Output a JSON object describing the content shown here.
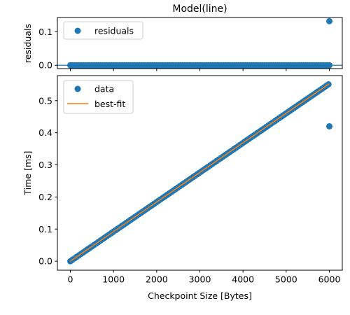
{
  "colors": {
    "points": "#1f77b4",
    "fit_line": "#ff7f0e",
    "zero_line": "#1f77b4",
    "axes": "#000000",
    "background": "#ffffff"
  },
  "chart_data": [
    {
      "type": "scatter",
      "panel": "residuals",
      "title": "Model(line)",
      "xlabel": "",
      "ylabel": "residuals",
      "xlim": [
        -300,
        6300
      ],
      "ylim": [
        -0.01,
        0.143
      ],
      "x_ticks": [
        0,
        1000,
        2000,
        3000,
        4000,
        5000,
        6000
      ],
      "x_tick_labels_visible": false,
      "y_ticks": [
        0.0,
        0.1
      ],
      "y_tick_labels": [
        "0.0",
        "0.1"
      ],
      "grid": false,
      "legend": {
        "placement": "upper-left",
        "entries": [
          "residuals"
        ]
      },
      "zero_line": 0.0,
      "series": [
        {
          "name": "residuals",
          "marker": "circle",
          "dense_range": {
            "x_start": 0,
            "x_end": 6000,
            "count": 121,
            "y": 0.0
          },
          "points": [
            {
              "x": 6000,
              "y": 0.132
            }
          ]
        }
      ]
    },
    {
      "type": "scatter",
      "panel": "data",
      "title": "",
      "xlabel": "Checkpoint Size [Bytes]",
      "ylabel": "Time [ms]",
      "xlim": [
        -300,
        6300
      ],
      "ylim": [
        -0.028,
        0.578
      ],
      "x_ticks": [
        0,
        1000,
        2000,
        3000,
        4000,
        5000,
        6000
      ],
      "x_tick_labels": [
        "0",
        "1000",
        "2000",
        "3000",
        "4000",
        "5000",
        "6000"
      ],
      "y_ticks": [
        0.0,
        0.1,
        0.2,
        0.3,
        0.4,
        0.5
      ],
      "y_tick_labels": [
        "0.0",
        "0.1",
        "0.2",
        "0.3",
        "0.4",
        "0.5"
      ],
      "grid": false,
      "legend": {
        "placement": "upper-left",
        "entries": [
          "data",
          "best-fit"
        ]
      },
      "series": [
        {
          "name": "data",
          "marker": "circle",
          "dense_range": {
            "x_start": 0,
            "x_end": 5980,
            "count": 121,
            "slope": 9.21e-05,
            "intercept": 0.0
          },
          "points": [
            {
              "x": 6000,
              "y": 0.42
            }
          ]
        },
        {
          "name": "best-fit",
          "line": true,
          "x": [
            0,
            6000
          ],
          "y": [
            0.0,
            0.553
          ]
        }
      ]
    }
  ]
}
